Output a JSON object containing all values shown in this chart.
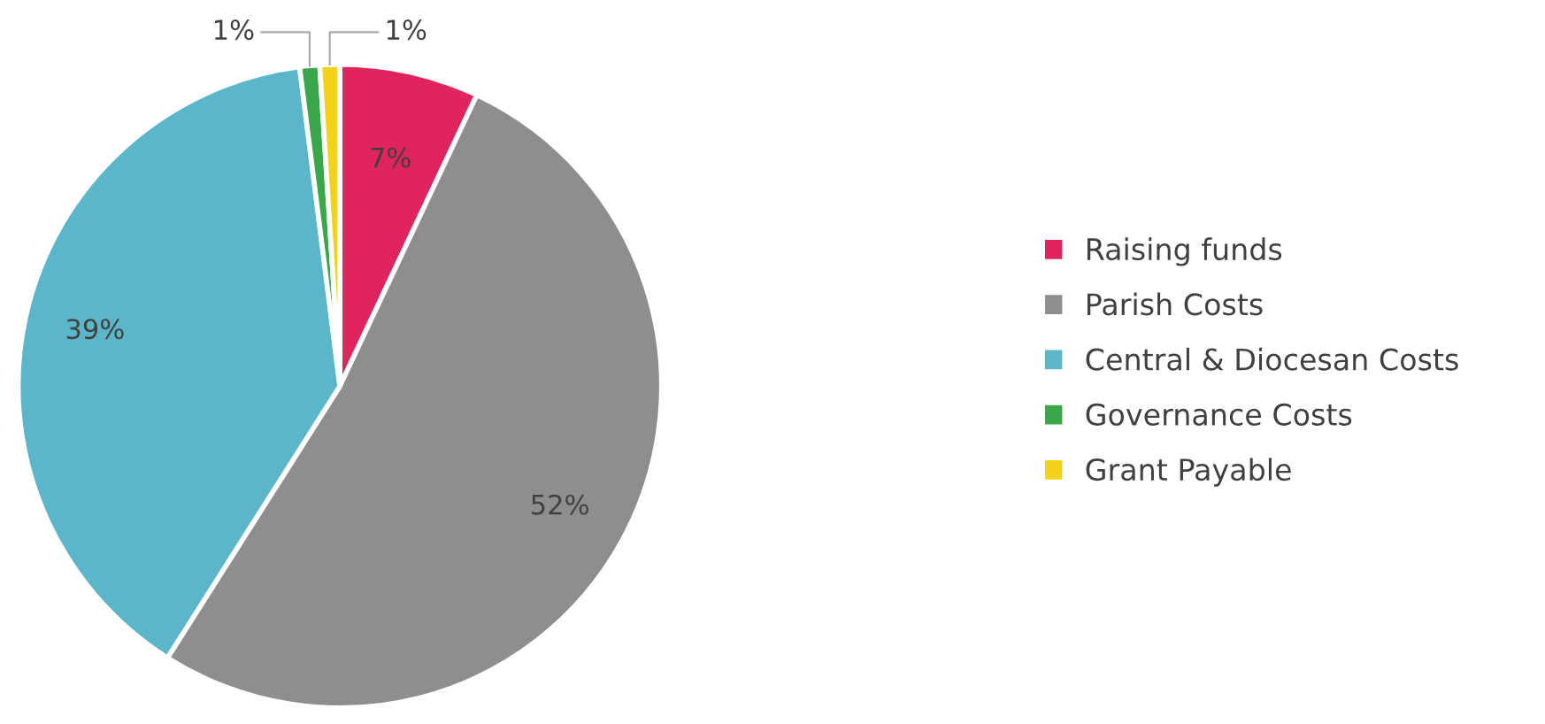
{
  "chart_data": {
    "type": "pie",
    "categories": [
      "Raising funds",
      "Parish Costs",
      "Central & Diocesan Costs",
      "Governance Costs",
      "Grant Payable"
    ],
    "values": [
      7,
      52,
      39,
      1,
      1
    ],
    "value_labels": [
      "7%",
      "52%",
      "39%",
      "1%",
      "1%"
    ],
    "colors": [
      "#e0245e",
      "#8e8e8e",
      "#5cb6c9",
      "#3aa84a",
      "#f2d21b"
    ],
    "legend": "right"
  }
}
